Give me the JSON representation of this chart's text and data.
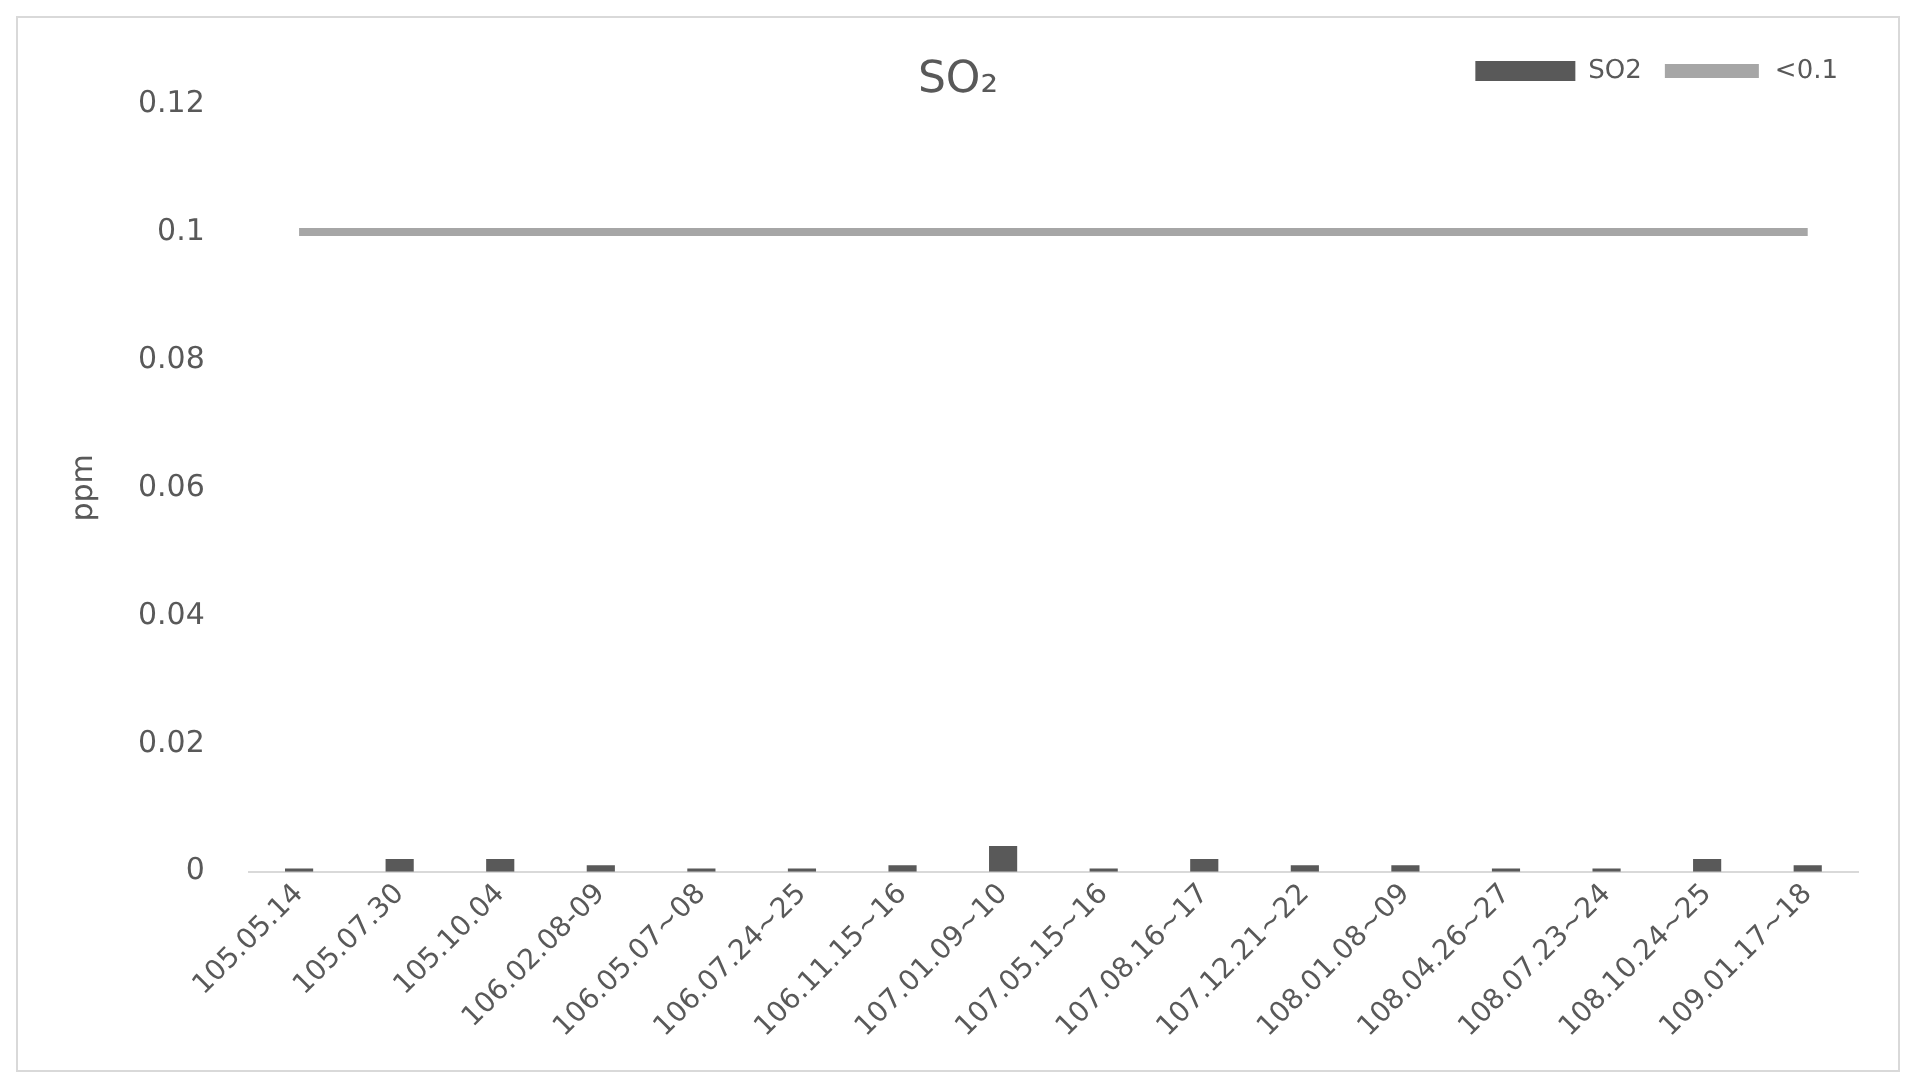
{
  "chart_data": {
    "type": "bar",
    "title": "SO₂",
    "ylabel": "ppm",
    "categories": [
      "105.05.14",
      "105.07.30",
      "105.10.04",
      "106.02.08-09",
      "106.05.07~08",
      "106.07.24~25",
      "106.11.15~16",
      "107.01.09~10",
      "107.05.15~16",
      "107.08.16~17",
      "107.12.21~22",
      "108.01.08~09",
      "108.04.26~27",
      "108.07.23~24",
      "108.10.24~25",
      "109.01.17~18"
    ],
    "series": [
      {
        "name": "SO2",
        "color": "#595959",
        "values": [
          0.0005,
          0.002,
          0.002,
          0.001,
          0.0005,
          0.0005,
          0.001,
          0.004,
          0.0005,
          0.002,
          0.001,
          0.001,
          0.0005,
          0.0005,
          0.002,
          0.001
        ]
      },
      {
        "name": "<0.1",
        "type": "line",
        "color": "#a6a6a6",
        "values": [
          0.1,
          0.1,
          0.1,
          0.1,
          0.1,
          0.1,
          0.1,
          0.1,
          0.1,
          0.1,
          0.1,
          0.1,
          0.1,
          0.1,
          0.1,
          0.1
        ]
      }
    ],
    "ylim": [
      0,
      0.12
    ],
    "yticks": [
      0,
      0.02,
      0.04,
      0.06,
      0.08,
      0.1,
      0.12
    ],
    "grid": false,
    "legend": "top right",
    "marker": "none",
    "line_style": "solid"
  }
}
